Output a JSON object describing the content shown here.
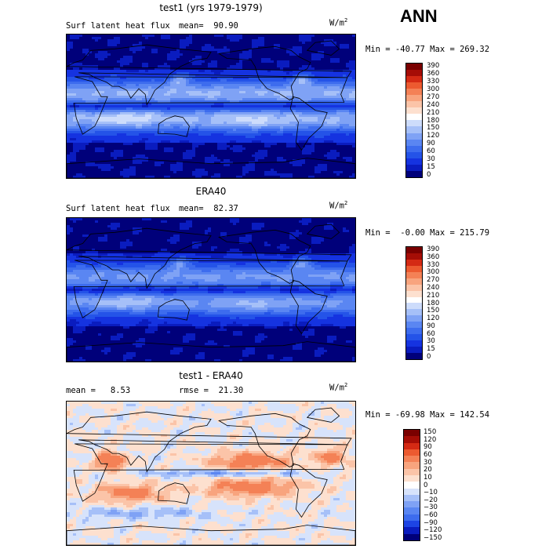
{
  "season": "ANN",
  "colors": {
    "abs_scale": [
      "#00007a",
      "#0a1cbf",
      "#1533e0",
      "#2453e8",
      "#3d6cee",
      "#5a86f2",
      "#7fa2f5",
      "#a6c0f8",
      "#cddcfb",
      "#ffffff",
      "#fde0cf",
      "#fbc4a8",
      "#f8a47e",
      "#f48156",
      "#ec5a30",
      "#d42a14",
      "#a50d06",
      "#7a0000"
    ],
    "diff_scale": [
      "#00007a",
      "#0a1cbf",
      "#1d44e4",
      "#3d6cee",
      "#5a86f2",
      "#7fa2f5",
      "#a6c0f8",
      "#d7e3fb",
      "#ffffff",
      "#fde0cf",
      "#fbc4a8",
      "#f8a47e",
      "#f48156",
      "#ec5a30",
      "#d42a14",
      "#a50d06",
      "#7a0000"
    ],
    "land": "#000000"
  },
  "panels": [
    {
      "title": "test1 (yrs 1979-1979)",
      "left_label": "Surf latent heat flux",
      "right_label": "mean=  90.90",
      "units_base": "W/m",
      "units_exp": "2",
      "minmax": "Min = -40.77 Max = 269.32",
      "ticks": [
        "390",
        "360",
        "330",
        "300",
        "270",
        "240",
        "210",
        "180",
        "150",
        "120",
        "90",
        "60",
        "30",
        "15",
        "0"
      ]
    },
    {
      "title": "ERA40",
      "left_label": "Surf latent heat flux",
      "right_label": "mean=  82.37",
      "units_base": "W/m",
      "units_exp": "2",
      "minmax": "Min =  -0.00 Max = 215.79",
      "ticks": [
        "390",
        "360",
        "330",
        "300",
        "270",
        "240",
        "210",
        "180",
        "150",
        "120",
        "90",
        "60",
        "30",
        "15",
        "0"
      ]
    },
    {
      "title": "test1 - ERA40",
      "left_label": "mean =   8.53",
      "right_label": "rmse =  21.30",
      "units_base": "W/m",
      "units_exp": "2",
      "minmax": "Min = -69.98 Max = 142.54",
      "ticks": [
        "150",
        "120",
        "90",
        "60",
        "30",
        "20",
        "10",
        "0",
        "−10",
        "−20",
        "−30",
        "−60",
        "−90",
        "−120",
        "−150"
      ]
    }
  ]
}
